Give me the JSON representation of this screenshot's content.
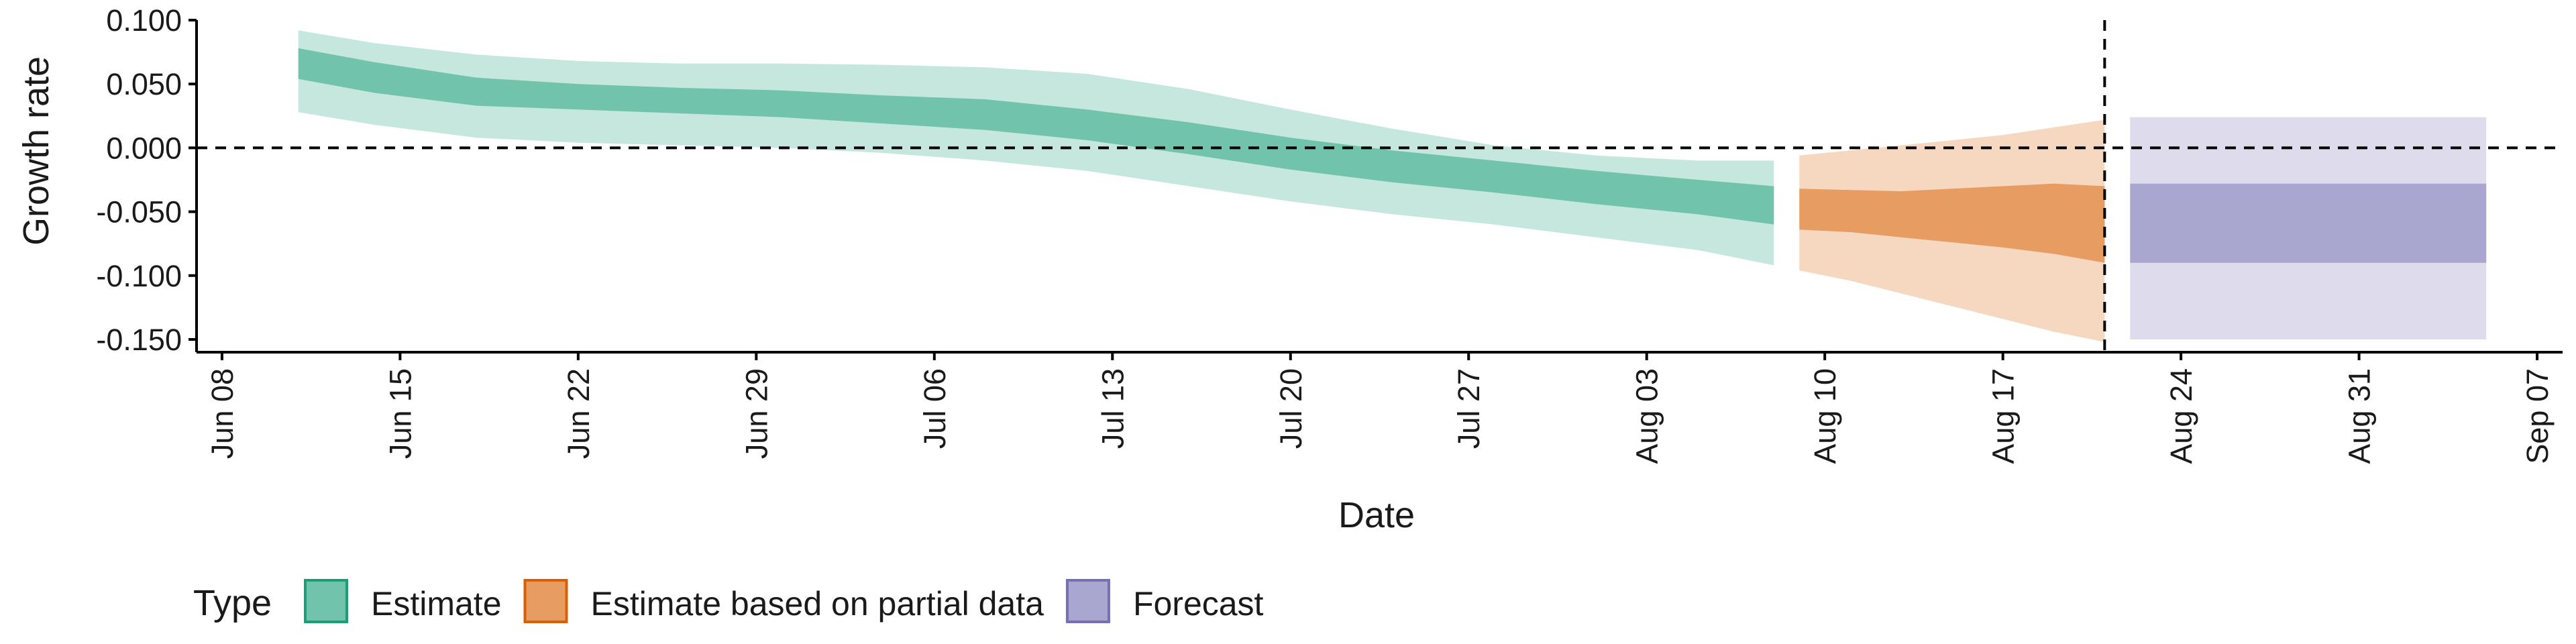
{
  "chart_data": {
    "type": "area",
    "xlabel": "Date",
    "ylabel": "Growth rate",
    "xlim": [
      "2020-06-07",
      "2020-09-08"
    ],
    "ylim": [
      -0.16,
      0.1
    ],
    "x_ticks": [
      "2020-06-08",
      "2020-06-15",
      "2020-06-22",
      "2020-06-29",
      "2020-07-06",
      "2020-07-13",
      "2020-07-20",
      "2020-07-27",
      "2020-08-03",
      "2020-08-10",
      "2020-08-17",
      "2020-08-24",
      "2020-08-31",
      "2020-09-07"
    ],
    "x_tick_labels": [
      "Jun 08",
      "Jun 15",
      "Jun 22",
      "Jun 29",
      "Jul 06",
      "Jul 13",
      "Jul 20",
      "Jul 27",
      "Aug 03",
      "Aug 10",
      "Aug 17",
      "Aug 24",
      "Aug 31",
      "Sep 07"
    ],
    "y_ticks": [
      0.1,
      0.05,
      0.0,
      -0.05,
      -0.1,
      -0.15
    ],
    "y_tick_labels": [
      "0.100",
      "0.050",
      "0.000",
      "-0.050",
      "-0.100",
      "-0.150"
    ],
    "reference_lines": {
      "horizontal_y": 0.0,
      "vertical_x": "2020-08-21"
    },
    "grid": false,
    "legend": {
      "title": "Type",
      "position": "bottom-left"
    },
    "series": [
      {
        "name": "Estimate",
        "color": "#1b9e77",
        "x": [
          "2020-06-11",
          "2020-06-14",
          "2020-06-18",
          "2020-06-22",
          "2020-06-26",
          "2020-06-30",
          "2020-07-04",
          "2020-07-08",
          "2020-07-12",
          "2020-07-16",
          "2020-07-20",
          "2020-07-24",
          "2020-07-28",
          "2020-08-01",
          "2020-08-05",
          "2020-08-08"
        ],
        "median": [
          0.066,
          0.055,
          0.043,
          0.04,
          0.037,
          0.035,
          0.03,
          0.026,
          0.018,
          0.008,
          -0.004,
          -0.014,
          -0.022,
          -0.03,
          -0.038,
          -0.044
        ],
        "inner_lower": [
          0.054,
          0.043,
          0.033,
          0.03,
          0.027,
          0.024,
          0.019,
          0.014,
          0.006,
          -0.005,
          -0.017,
          -0.027,
          -0.035,
          -0.044,
          -0.052,
          -0.06
        ],
        "inner_upper": [
          0.078,
          0.067,
          0.055,
          0.05,
          0.047,
          0.045,
          0.041,
          0.038,
          0.03,
          0.02,
          0.008,
          -0.002,
          -0.01,
          -0.018,
          -0.025,
          -0.03
        ],
        "outer_lower": [
          0.028,
          0.018,
          0.008,
          0.004,
          0.002,
          0.0,
          -0.004,
          -0.01,
          -0.018,
          -0.03,
          -0.042,
          -0.052,
          -0.06,
          -0.07,
          -0.08,
          -0.092
        ],
        "outer_upper": [
          0.092,
          0.082,
          0.073,
          0.068,
          0.066,
          0.066,
          0.065,
          0.063,
          0.058,
          0.046,
          0.03,
          0.015,
          0.002,
          -0.006,
          -0.01,
          -0.01
        ]
      },
      {
        "name": "Estimate based on partial data",
        "color": "#d95f02",
        "x": [
          "2020-08-09",
          "2020-08-11",
          "2020-08-13",
          "2020-08-15",
          "2020-08-17",
          "2020-08-19",
          "2020-08-21"
        ],
        "median": [
          -0.048,
          -0.05,
          -0.052,
          -0.054,
          -0.056,
          -0.058,
          -0.06
        ],
        "inner_lower": [
          -0.064,
          -0.066,
          -0.07,
          -0.074,
          -0.078,
          -0.083,
          -0.09
        ],
        "inner_upper": [
          -0.032,
          -0.033,
          -0.034,
          -0.032,
          -0.03,
          -0.028,
          -0.03
        ],
        "outer_lower": [
          -0.096,
          -0.104,
          -0.114,
          -0.124,
          -0.134,
          -0.144,
          -0.152
        ],
        "outer_upper": [
          -0.006,
          -0.002,
          0.002,
          0.006,
          0.01,
          0.016,
          0.022
        ]
      },
      {
        "name": "Forecast",
        "color": "#7570b3",
        "x": [
          "2020-08-22",
          "2020-09-05"
        ],
        "median": [
          -0.058,
          -0.058
        ],
        "inner_lower": [
          -0.09,
          -0.09
        ],
        "inner_upper": [
          -0.028,
          -0.028
        ],
        "outer_lower": [
          -0.15,
          -0.15
        ],
        "outer_upper": [
          0.024,
          0.024
        ]
      }
    ]
  }
}
